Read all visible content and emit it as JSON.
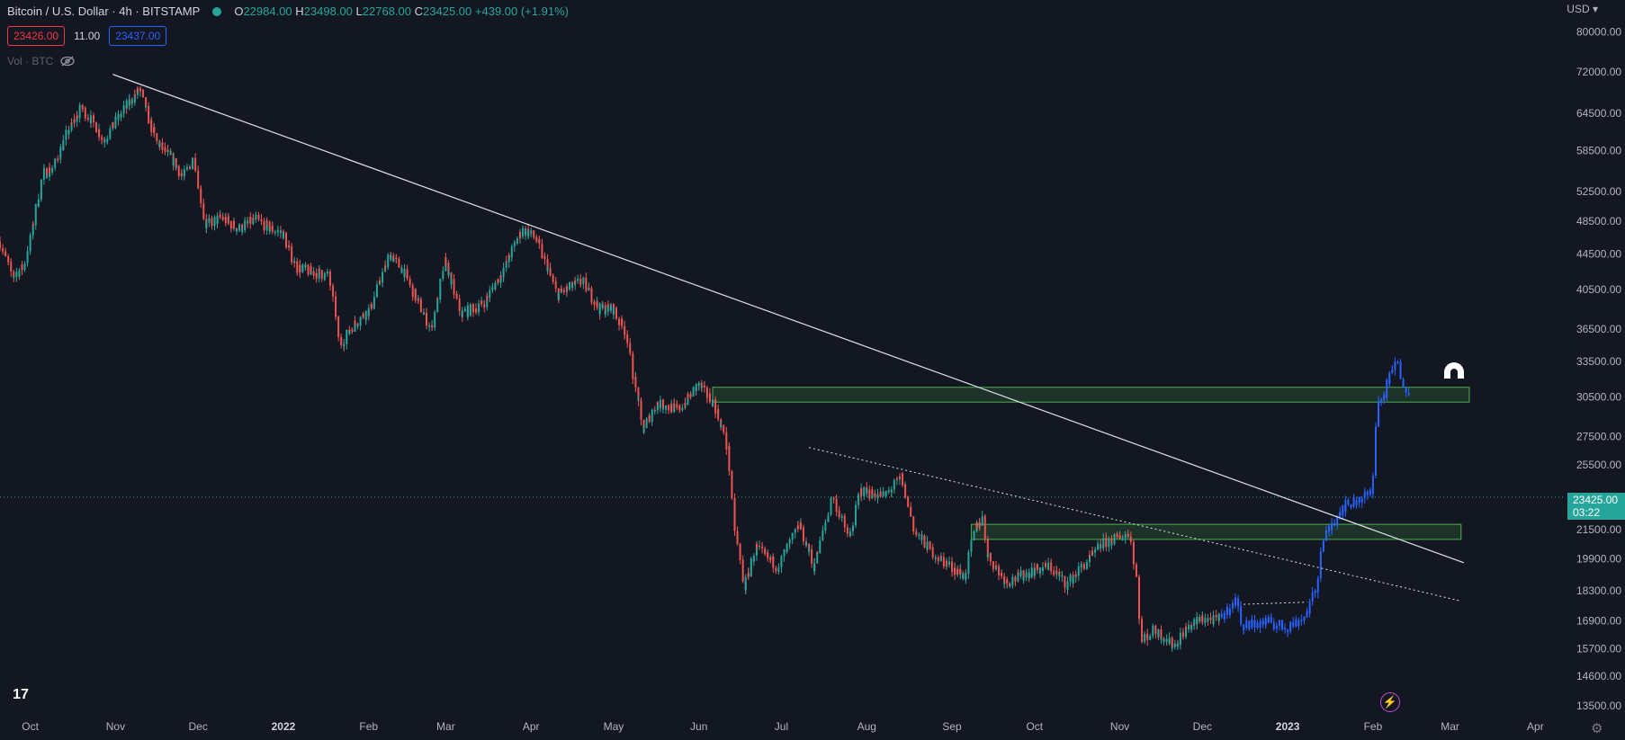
{
  "header": {
    "title": "Bitcoin / U.S. Dollar · 4h · BITSTAMP",
    "o_label": "O",
    "o_value": "22984.00",
    "h_label": "H",
    "h_value": "23498.00",
    "l_label": "L",
    "l_value": "22768.00",
    "c_label": "C",
    "c_value": "23425.00",
    "change": "+439.00 (+1.91%)"
  },
  "trade": {
    "sell": "23426.00",
    "spread": "11.00",
    "buy": "23437.00"
  },
  "volume_label": "Vol · BTC",
  "currency": "USD",
  "current_price": {
    "price": "23425.00",
    "countdown": "03:22"
  },
  "colors": {
    "background": "#131722",
    "up": "#26a69a",
    "down": "#ef5350",
    "highlight": "#2962ff",
    "zone": "#4caf50",
    "trendline": "#ffffff"
  },
  "chart_data": {
    "type": "candlestick",
    "scale": "log",
    "ylim": [
      13500,
      82000
    ],
    "y_ticks": [
      "80000.00",
      "72000.00",
      "64500.00",
      "58500.00",
      "52500.00",
      "48500.00",
      "44500.00",
      "40500.00",
      "36500.00",
      "33500.00",
      "30500.00",
      "27500.00",
      "25500.00",
      "21500.00",
      "19900.00",
      "18300.00",
      "16900.00",
      "15700.00",
      "14600.00",
      "13500.00"
    ],
    "x_ticks": [
      "Oct",
      "Nov",
      "Dec",
      "2022",
      "Feb",
      "Mar",
      "Apr",
      "May",
      "Jun",
      "Jul",
      "Aug",
      "Sep",
      "Oct",
      "Nov",
      "Dec",
      "2023",
      "Feb",
      "Mar",
      "Apr"
    ],
    "x_tick_dates": [
      "2021-10-01",
      "2021-11-01",
      "2021-12-01",
      "2022-01-01",
      "2022-02-01",
      "2022-03-01",
      "2022-04-01",
      "2022-05-01",
      "2022-06-01",
      "2022-07-01",
      "2022-08-01",
      "2022-09-01",
      "2022-10-01",
      "2022-11-01",
      "2022-12-01",
      "2023-01-01",
      "2023-02-01",
      "2023-03-01",
      "2023-04-01"
    ],
    "xlim": [
      "2021-09-20",
      "2023-04-12"
    ],
    "price_path": [
      [
        "2021-09-20",
        46000
      ],
      [
        "2021-09-25",
        42000
      ],
      [
        "2021-09-29",
        43000
      ],
      [
        "2021-10-02",
        47500
      ],
      [
        "2021-10-06",
        55000
      ],
      [
        "2021-10-10",
        56000
      ],
      [
        "2021-10-15",
        61500
      ],
      [
        "2021-10-20",
        65500
      ],
      [
        "2021-10-25",
        62500
      ],
      [
        "2021-10-28",
        60000
      ],
      [
        "2021-11-02",
        63500
      ],
      [
        "2021-11-08",
        67500
      ],
      [
        "2021-11-10",
        68800
      ],
      [
        "2021-11-16",
        60000
      ],
      [
        "2021-11-22",
        57000
      ],
      [
        "2021-11-26",
        54500
      ],
      [
        "2021-11-30",
        57500
      ],
      [
        "2021-12-04",
        48000
      ],
      [
        "2021-12-10",
        49000
      ],
      [
        "2021-12-16",
        47500
      ],
      [
        "2021-12-22",
        48800
      ],
      [
        "2021-12-28",
        47500
      ],
      [
        "2022-01-01",
        47000
      ],
      [
        "2022-01-06",
        43000
      ],
      [
        "2022-01-11",
        42500
      ],
      [
        "2022-01-18",
        42000
      ],
      [
        "2022-01-22",
        35000
      ],
      [
        "2022-01-27",
        37000
      ],
      [
        "2022-02-02",
        38500
      ],
      [
        "2022-02-09",
        44500
      ],
      [
        "2022-02-14",
        42500
      ],
      [
        "2022-02-24",
        36500
      ],
      [
        "2022-03-01",
        43500
      ],
      [
        "2022-03-07",
        38000
      ],
      [
        "2022-03-15",
        39000
      ],
      [
        "2022-03-22",
        42500
      ],
      [
        "2022-03-29",
        47500
      ],
      [
        "2022-04-03",
        46500
      ],
      [
        "2022-04-11",
        40000
      ],
      [
        "2022-04-20",
        41500
      ],
      [
        "2022-04-26",
        38500
      ],
      [
        "2022-05-01",
        38500
      ],
      [
        "2022-05-06",
        36000
      ],
      [
        "2022-05-10",
        30500
      ],
      [
        "2022-05-12",
        28000
      ],
      [
        "2022-05-17",
        30000
      ],
      [
        "2022-05-25",
        29500
      ],
      [
        "2022-06-01",
        31500
      ],
      [
        "2022-06-07",
        30000
      ],
      [
        "2022-06-12",
        26500
      ],
      [
        "2022-06-14",
        22000
      ],
      [
        "2022-06-18",
        18500
      ],
      [
        "2022-06-22",
        20500
      ],
      [
        "2022-06-30",
        19500
      ],
      [
        "2022-07-08",
        21800
      ],
      [
        "2022-07-13",
        19500
      ],
      [
        "2022-07-20",
        23500
      ],
      [
        "2022-07-26",
        21000
      ],
      [
        "2022-07-30",
        23800
      ],
      [
        "2022-08-08",
        23500
      ],
      [
        "2022-08-14",
        24700
      ],
      [
        "2022-08-19",
        21300
      ],
      [
        "2022-08-27",
        20000
      ],
      [
        "2022-09-06",
        19000
      ],
      [
        "2022-09-10",
        21700
      ],
      [
        "2022-09-13",
        22200
      ],
      [
        "2022-09-14",
        20200
      ],
      [
        "2022-09-21",
        18700
      ],
      [
        "2022-10-01",
        19300
      ],
      [
        "2022-10-07",
        19500
      ],
      [
        "2022-10-13",
        18600
      ],
      [
        "2022-10-26",
        20700
      ],
      [
        "2022-11-05",
        21300
      ],
      [
        "2022-11-08",
        18500
      ],
      [
        "2022-11-09",
        16000
      ],
      [
        "2022-11-14",
        16500
      ],
      [
        "2022-11-21",
        15800
      ],
      [
        "2022-11-25",
        16500
      ],
      [
        "2022-12-01",
        17000
      ],
      [
        "2022-12-07",
        16900
      ],
      [
        "2022-12-14",
        17900
      ],
      [
        "2022-12-16",
        16700
      ],
      [
        "2022-12-25",
        16850
      ],
      [
        "2023-01-01",
        16600
      ],
      [
        "2023-01-08",
        17100
      ],
      [
        "2023-01-12",
        18500
      ],
      [
        "2023-01-14",
        20800
      ],
      [
        "2023-01-21",
        22800
      ],
      [
        "2023-01-26",
        23200
      ],
      [
        "2023-02-01",
        23700
      ],
      [
        "2023-02-03",
        30000
      ],
      [
        "2023-02-05",
        30500
      ],
      [
        "2023-02-08",
        32500
      ],
      [
        "2023-02-10",
        33500
      ],
      [
        "2023-02-12",
        32000
      ],
      [
        "2023-02-14",
        31000
      ]
    ],
    "highlight_start": "2022-12-08",
    "trendlines": [
      {
        "style": "solid",
        "from": [
          "2021-10-31",
          71500
        ],
        "to": [
          "2023-03-06",
          19700
        ]
      },
      {
        "style": "dotted",
        "from": [
          "2022-07-11",
          26700
        ],
        "to": [
          "2023-03-05",
          17800
        ]
      },
      {
        "style": "dotted",
        "from": [
          "2022-12-16",
          17650
        ],
        "to": [
          "2023-01-08",
          17750
        ]
      }
    ],
    "zones": [
      {
        "from": "2022-06-06",
        "to": "2023-03-08",
        "low": 30100,
        "high": 31300
      },
      {
        "from": "2022-09-08",
        "to": "2023-03-05",
        "low": 20950,
        "high": 21800
      }
    ],
    "current_line": 23425,
    "annotations": [
      {
        "type": "magnet-icon",
        "at": [
          "2023-02-18",
          33000
        ]
      }
    ]
  }
}
